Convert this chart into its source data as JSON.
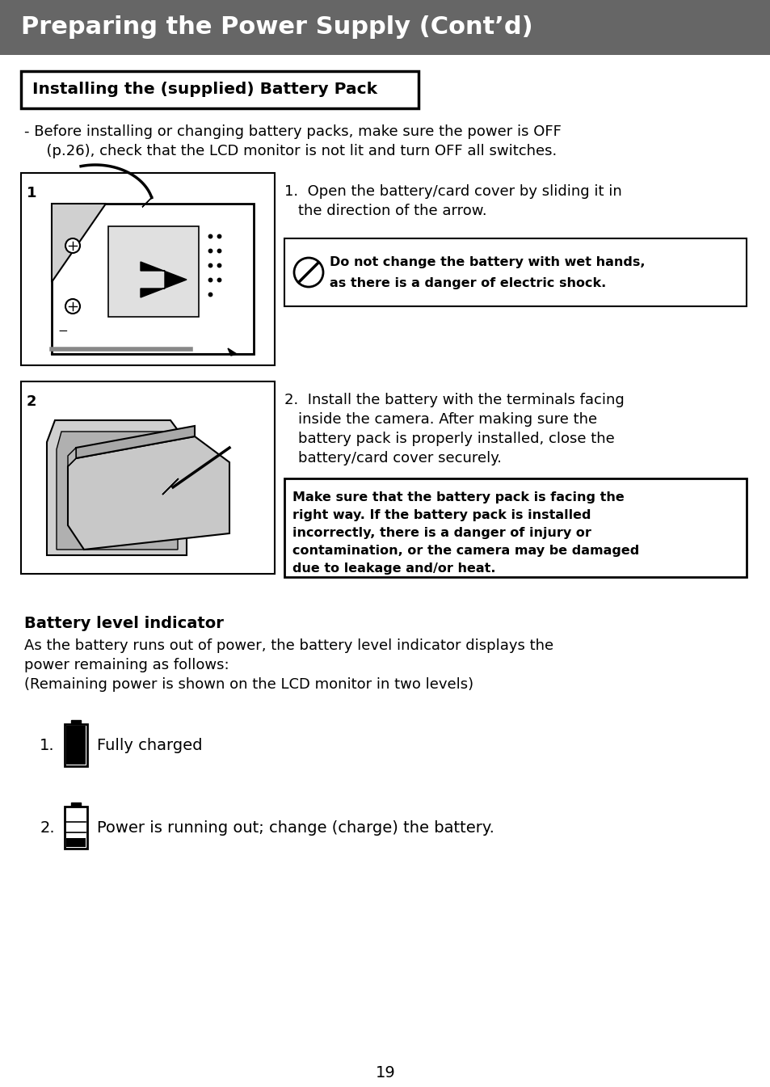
{
  "page_bg": "#ffffff",
  "header_bg": "#666666",
  "header_text": "Preparing the Power Supply (Cont’d)",
  "header_text_color": "#ffffff",
  "section_title": "Installing the (supplied) Battery Pack",
  "warn_line1": "- Before installing or changing battery packs, make sure the power is OFF",
  "warn_line2": "  (p.26), check that the LCD monitor is not lit and turn OFF all switches.",
  "step1_line1": "1.  Open the battery/card cover by sliding it in",
  "step1_line2": "the direction of the arrow.",
  "caution1_line1": "Do not change the battery with wet hands,",
  "caution1_line2": "as there is a danger of electric shock.",
  "step2_line1": "2.  Install the battery with the terminals facing",
  "step2_line2": "inside the camera. After making sure the",
  "step2_line3": "battery pack is properly installed, close the",
  "step2_line4": "battery/card cover securely.",
  "caution2_line1": "Make sure that the battery pack is facing the",
  "caution2_line2": "right way. If the battery pack is installed",
  "caution2_line3": "incorrectly, there is a danger of injury or",
  "caution2_line4": "contamination, or the camera may be damaged",
  "caution2_line5": "due to leakage and/or heat.",
  "battery_title": "Battery level indicator",
  "battery_body1": "As the battery runs out of power, the battery level indicator displays the",
  "battery_body2": "power remaining as follows:",
  "battery_body3": "(Remaining power is shown on the LCD monitor in two levels)",
  "item1_label": "1.",
  "item1_text": "Fully charged",
  "item2_label": "2.",
  "item2_text": "Power is running out; change (charge) the battery.",
  "page_number": "19"
}
